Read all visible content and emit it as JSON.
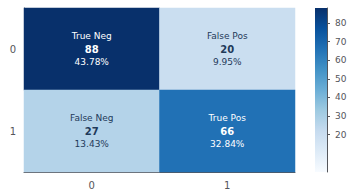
{
  "chart_data": {
    "type": "heatmap",
    "x_categories": [
      "0",
      "1"
    ],
    "y_categories": [
      "0",
      "1"
    ],
    "cells": [
      [
        88,
        20
      ],
      [
        27,
        66
      ]
    ],
    "cell_labels": [
      [
        "True Neg",
        "False Pos"
      ],
      [
        "False Neg",
        "True Pos"
      ]
    ],
    "percentages": [
      [
        "43.78%",
        "9.95%"
      ],
      [
        "13.43%",
        "32.84%"
      ]
    ],
    "colorbar_range": [
      0,
      88
    ],
    "colorbar_ticks": [
      20,
      30,
      40,
      50,
      60,
      70,
      80
    ]
  }
}
